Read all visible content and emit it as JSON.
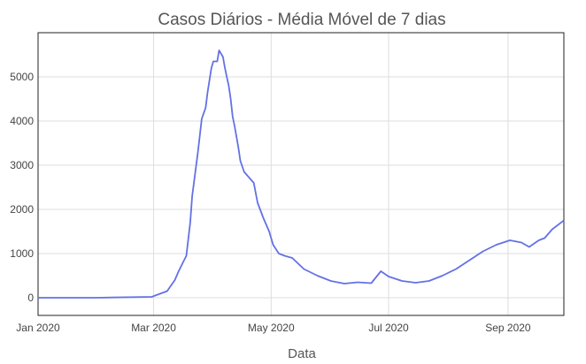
{
  "colors": {
    "series": "#6371e6",
    "grid": "#dddddd",
    "text": "#555555"
  },
  "chart_data": {
    "type": "line",
    "title": "Casos Diários - Média Móvel de 7 dias",
    "xlabel": "Data",
    "ylabel": "",
    "grid": true,
    "legend": "none",
    "xlim": [
      "2020-01-01",
      "2020-09-30"
    ],
    "ylim": [
      -400,
      6000
    ],
    "x_ticks": [
      {
        "date": "2020-01-01",
        "label": "Jan 2020"
      },
      {
        "date": "2020-03-01",
        "label": "Mar 2020"
      },
      {
        "date": "2020-05-01",
        "label": "May 2020"
      },
      {
        "date": "2020-07-01",
        "label": "Jul 2020"
      },
      {
        "date": "2020-09-01",
        "label": "Sep 2020"
      }
    ],
    "y_ticks": [
      0,
      1000,
      2000,
      3000,
      4000,
      5000
    ],
    "series": [
      {
        "name": "",
        "x": [
          "2020-01-01",
          "2020-01-31",
          "2020-02-29",
          "2020-03-08",
          "2020-03-12",
          "2020-03-14",
          "2020-03-18",
          "2020-03-20",
          "2020-03-21",
          "2020-03-24",
          "2020-03-26",
          "2020-03-28",
          "2020-03-29",
          "2020-03-31",
          "2020-04-01",
          "2020-04-03",
          "2020-04-04",
          "2020-04-06",
          "2020-04-07",
          "2020-04-08",
          "2020-04-09",
          "2020-04-10",
          "2020-04-11",
          "2020-04-12",
          "2020-04-14",
          "2020-04-15",
          "2020-04-17",
          "2020-04-20",
          "2020-04-22",
          "2020-04-24",
          "2020-04-27",
          "2020-04-30",
          "2020-05-02",
          "2020-05-05",
          "2020-05-08",
          "2020-05-12",
          "2020-05-18",
          "2020-05-25",
          "2020-06-01",
          "2020-06-08",
          "2020-06-15",
          "2020-06-22",
          "2020-06-27",
          "2020-07-01",
          "2020-07-08",
          "2020-07-15",
          "2020-07-22",
          "2020-07-29",
          "2020-08-05",
          "2020-08-12",
          "2020-08-19",
          "2020-08-26",
          "2020-09-02",
          "2020-09-08",
          "2020-09-12",
          "2020-09-17",
          "2020-09-20",
          "2020-09-24",
          "2020-09-30"
        ],
        "y": [
          0,
          0,
          20,
          150,
          400,
          600,
          950,
          1700,
          2300,
          3300,
          4050,
          4300,
          4650,
          5200,
          5350,
          5350,
          5600,
          5450,
          5200,
          5000,
          4800,
          4500,
          4100,
          3900,
          3400,
          3100,
          2850,
          2700,
          2600,
          2150,
          1800,
          1500,
          1200,
          1000,
          950,
          900,
          650,
          500,
          380,
          320,
          350,
          330,
          600,
          480,
          380,
          340,
          380,
          500,
          650,
          850,
          1050,
          1200,
          1300,
          1250,
          1150,
          1300,
          1350,
          1550,
          1750
        ]
      }
    ]
  }
}
